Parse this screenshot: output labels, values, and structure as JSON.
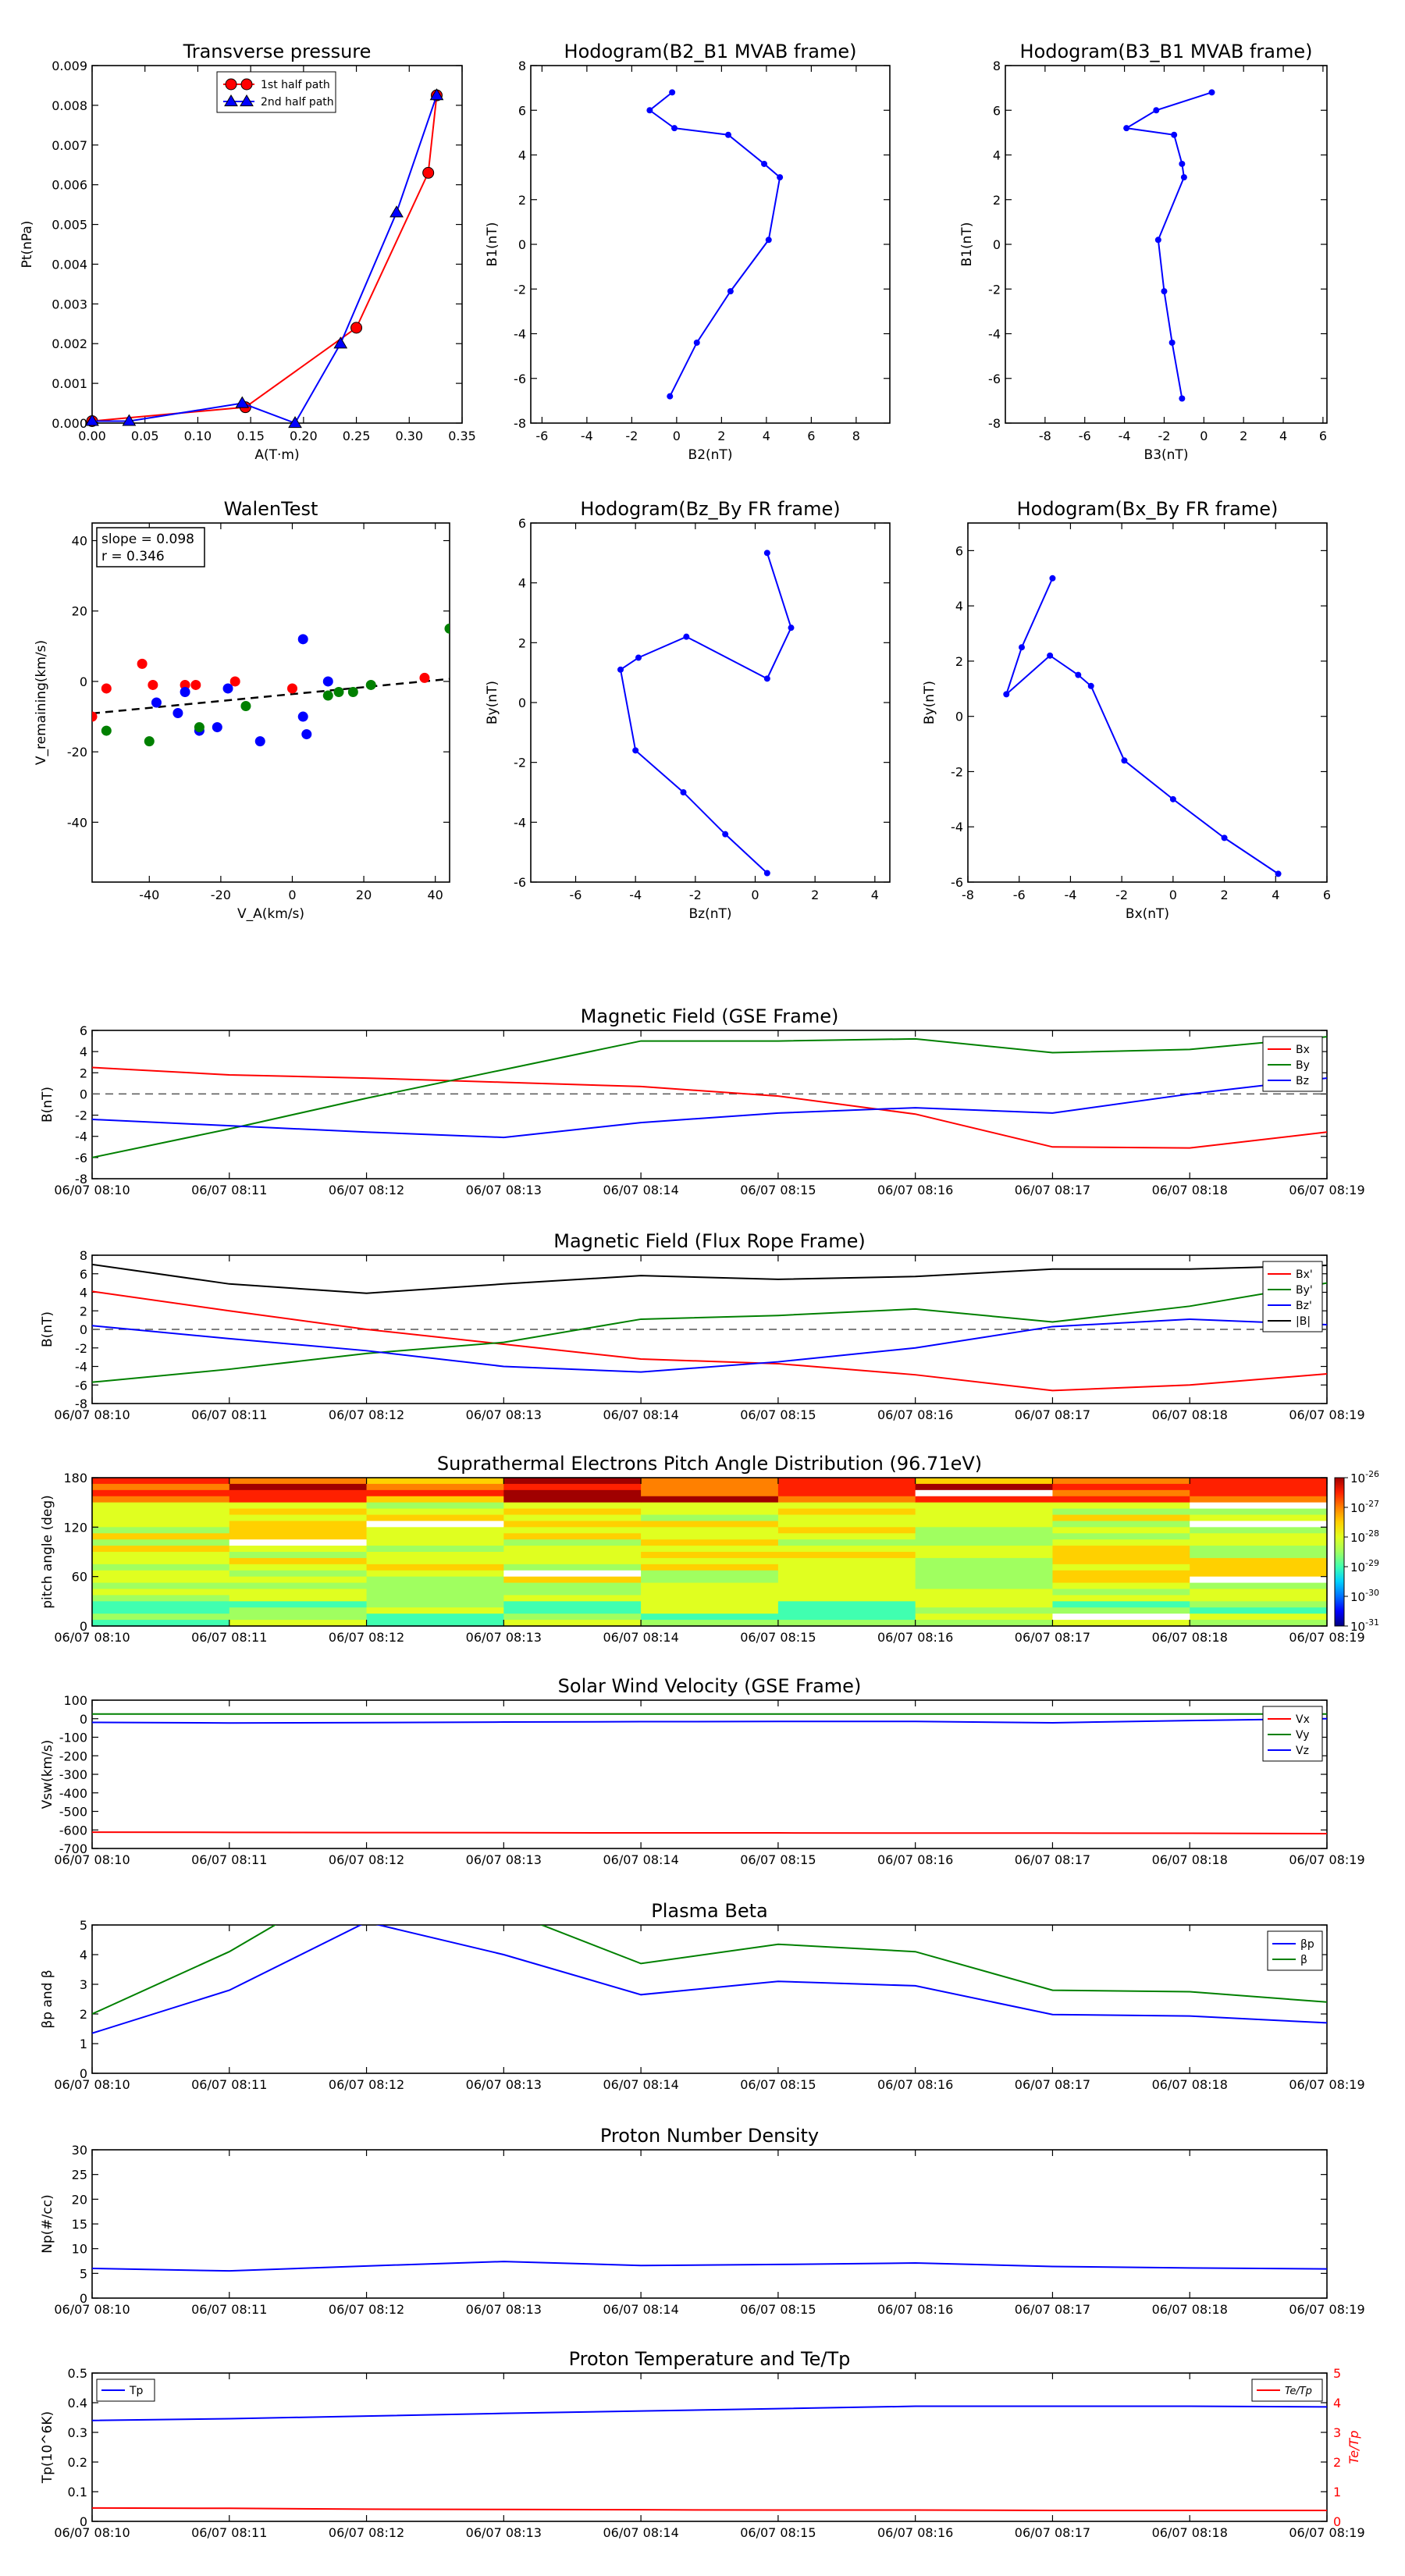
{
  "common_x": {
    "ticks": [
      "06/07 08:10",
      "06/07 08:11",
      "06/07 08:12",
      "06/07 08:13",
      "06/07 08:14",
      "06/07 08:15",
      "06/07 08:16",
      "06/07 08:17",
      "06/07 08:18",
      "06/07 08:19"
    ]
  },
  "colors": {
    "red": "#ff0000",
    "green": "#008000",
    "blue": "#0000ff",
    "black": "#000000"
  },
  "chart_data": [
    {
      "id": "tp",
      "type": "line",
      "title": "Transverse pressure",
      "xlabel": "A(T·m)",
      "ylabel": "Pt(nPa)",
      "xlim": [
        0,
        0.35
      ],
      "ylim": [
        0,
        0.009
      ],
      "xticks": [
        0,
        0.05,
        0.1,
        0.15,
        0.2,
        0.25,
        0.3,
        0.35
      ],
      "xticklabels": [
        "0.00",
        "0.05",
        "0.10",
        "0.15",
        "0.20",
        "0.25",
        "0.30",
        "0.35"
      ],
      "yticks": [
        0,
        0.001,
        0.002,
        0.003,
        0.004,
        0.005,
        0.006,
        0.007,
        0.008,
        0.009
      ],
      "yticklabels": [
        "0.000",
        "0.001",
        "0.002",
        "0.003",
        "0.004",
        "0.005",
        "0.006",
        "0.007",
        "0.008",
        "0.009"
      ],
      "legend": {
        "position": "top-center",
        "entries": [
          "1st half path",
          "2nd half path"
        ]
      },
      "series": [
        {
          "name": "1st half path",
          "color": "red",
          "marker": "circle",
          "x": [
            0.0,
            0.145,
            0.25,
            0.318,
            0.326
          ],
          "y": [
            5e-05,
            0.0004,
            0.0024,
            0.0063,
            0.00825
          ]
        },
        {
          "name": "2nd half path",
          "color": "blue",
          "marker": "triangle",
          "x": [
            0.326,
            0.288,
            0.235,
            0.192,
            0.142,
            0.035,
            0.0
          ],
          "y": [
            0.00825,
            0.0053,
            0.002,
            0.0,
            0.0005,
            5e-05,
            5e-05
          ]
        }
      ]
    },
    {
      "id": "h1",
      "type": "line",
      "title": "Hodogram(B2_B1 MVAB frame)",
      "xlabel": "B2(nT)",
      "ylabel": "B1(nT)",
      "xlim": [
        -6.5,
        9.5
      ],
      "ylim": [
        -8,
        8
      ],
      "xticks": [
        -6,
        -4,
        -2,
        0,
        2,
        4,
        6,
        8
      ],
      "yticks": [
        -8,
        -6,
        -4,
        -2,
        0,
        2,
        4,
        6,
        8
      ],
      "series": [
        {
          "color": "blue",
          "marker": "dot",
          "x": [
            -0.2,
            -1.2,
            -0.1,
            2.3,
            3.9,
            4.6,
            4.1,
            2.4,
            0.9,
            -0.3
          ],
          "y": [
            6.8,
            6.0,
            5.2,
            4.9,
            3.6,
            3.0,
            0.2,
            -2.1,
            -4.4,
            -6.8
          ]
        }
      ]
    },
    {
      "id": "h2",
      "type": "line",
      "title": "Hodogram(B3_B1 MVAB frame)",
      "xlabel": "B3(nT)",
      "ylabel": "B1(nT)",
      "xlim": [
        -10,
        6.2
      ],
      "ylim": [
        -8,
        8
      ],
      "xticks": [
        -8,
        -6,
        -4,
        -2,
        0,
        2,
        4,
        6
      ],
      "yticks": [
        -8,
        -6,
        -4,
        -2,
        0,
        2,
        4,
        6,
        8
      ],
      "series": [
        {
          "color": "blue",
          "marker": "dot",
          "x": [
            0.4,
            -2.4,
            -3.9,
            -1.5,
            -1.1,
            -1.0,
            -2.3,
            -2.0,
            -1.6,
            -1.1
          ],
          "y": [
            6.8,
            6.0,
            5.2,
            4.9,
            3.6,
            3.0,
            0.2,
            -2.1,
            -4.4,
            -6.9
          ]
        }
      ]
    },
    {
      "id": "walen",
      "type": "scatter",
      "title": "WalenTest",
      "xlabel": "V_A(km/s)",
      "ylabel": "V_remaining(km/s)",
      "xlim": [
        -56,
        44
      ],
      "ylim": [
        -57,
        45
      ],
      "xticks": [
        -40,
        -20,
        0,
        20,
        40
      ],
      "yticks": [
        -40,
        -20,
        0,
        20,
        40
      ],
      "annotation": [
        "slope = 0.098",
        "r = 0.346"
      ],
      "fit": {
        "slope": 0.098,
        "intercept": -3.6
      },
      "series": [
        {
          "color": "red",
          "x": [
            -56,
            -52,
            -42,
            -39,
            -30,
            -27,
            -16,
            0,
            37
          ],
          "y": [
            -10,
            -2,
            5,
            -1,
            -1,
            -1,
            0,
            -2,
            1
          ]
        },
        {
          "color": "blue",
          "x": [
            -38,
            -32,
            -30,
            -26,
            -21,
            -18,
            -9,
            3,
            3,
            4,
            10
          ],
          "y": [
            -6,
            -9,
            -3,
            -14,
            -13,
            -2,
            -17,
            12,
            -10,
            -15,
            0
          ]
        },
        {
          "color": "green",
          "x": [
            -52,
            -40,
            -26,
            -13,
            10,
            13,
            17,
            22,
            44
          ],
          "y": [
            -14,
            -17,
            -13,
            -7,
            -4,
            -3,
            -3,
            -1,
            15
          ]
        }
      ]
    },
    {
      "id": "h3",
      "type": "line",
      "title": "Hodogram(Bz_By FR frame)",
      "xlabel": "Bz(nT)",
      "ylabel": "By(nT)",
      "xlim": [
        -7.5,
        4.5
      ],
      "ylim": [
        -6,
        6
      ],
      "xticks": [
        -6,
        -4,
        -2,
        0,
        2,
        4
      ],
      "yticks": [
        -6,
        -4,
        -2,
        0,
        2,
        4,
        6
      ],
      "series": [
        {
          "color": "blue",
          "marker": "dot",
          "x": [
            0.4,
            1.2,
            0.4,
            -2.3,
            -3.9,
            -4.5,
            -4.0,
            -2.4,
            -1.0,
            0.4
          ],
          "y": [
            5.0,
            2.5,
            0.8,
            2.2,
            1.5,
            1.1,
            -1.6,
            -3.0,
            -4.4,
            -5.7
          ]
        }
      ]
    },
    {
      "id": "h4",
      "type": "line",
      "title": "Hodogram(Bx_By FR frame)",
      "xlabel": "Bx(nT)",
      "ylabel": "By(nT)",
      "xlim": [
        -8,
        6
      ],
      "ylim": [
        -6,
        7
      ],
      "xticks": [
        -8,
        -6,
        -4,
        -2,
        0,
        2,
        4,
        6
      ],
      "yticks": [
        -6,
        -4,
        -2,
        0,
        2,
        4,
        6
      ],
      "series": [
        {
          "color": "blue",
          "marker": "dot",
          "x": [
            -4.7,
            -5.9,
            -6.5,
            -4.8,
            -3.7,
            -3.2,
            -1.9,
            0.0,
            2.0,
            4.1
          ],
          "y": [
            5.0,
            2.5,
            0.8,
            2.2,
            1.5,
            1.1,
            -1.6,
            -3.0,
            -4.4,
            -5.7
          ]
        }
      ]
    },
    {
      "id": "mag_gse",
      "type": "line",
      "title": "Magnetic Field (GSE Frame)",
      "ylabel": "B(nT)",
      "xlim": [
        0,
        9
      ],
      "ylim": [
        -8,
        6
      ],
      "yticks": [
        -8,
        -6,
        -4,
        -2,
        0,
        2,
        4,
        6
      ],
      "zero_line": true,
      "legend": {
        "position": "top-right"
      },
      "series": [
        {
          "name": "Bx",
          "color": "red",
          "values": [
            2.5,
            1.8,
            1.5,
            1.1,
            0.7,
            -0.2,
            -1.9,
            -5.0,
            -5.1,
            -3.6
          ]
        },
        {
          "name": "By",
          "color": "green",
          "values": [
            -6.0,
            -3.3,
            -0.4,
            2.3,
            5.0,
            5.0,
            5.2,
            3.9,
            4.2,
            5.4
          ]
        },
        {
          "name": "Bz",
          "color": "blue",
          "values": [
            -2.4,
            -3.0,
            -3.6,
            -4.1,
            -2.7,
            -1.8,
            -1.3,
            -1.8,
            0.0,
            1.5
          ]
        }
      ]
    },
    {
      "id": "mag_fr",
      "type": "line",
      "title": "Magnetic Field (Flux Rope Frame)",
      "ylabel": "B(nT)",
      "xlim": [
        0,
        9
      ],
      "ylim": [
        -8,
        8
      ],
      "yticks": [
        -8,
        -6,
        -4,
        -2,
        0,
        2,
        4,
        6,
        8
      ],
      "zero_line": true,
      "legend": {
        "position": "top-right"
      },
      "series": [
        {
          "name": "Bx'",
          "color": "red",
          "values": [
            4.1,
            2.0,
            0.0,
            -1.6,
            -3.2,
            -3.7,
            -4.9,
            -6.6,
            -6.0,
            -4.8
          ]
        },
        {
          "name": "By'",
          "color": "green",
          "values": [
            -5.7,
            -4.3,
            -2.6,
            -1.4,
            1.1,
            1.5,
            2.2,
            0.8,
            2.5,
            5.0
          ]
        },
        {
          "name": "Bz'",
          "color": "blue",
          "values": [
            0.4,
            -1.0,
            -2.3,
            -4.0,
            -4.6,
            -3.5,
            -2.0,
            0.3,
            1.1,
            0.5
          ]
        },
        {
          "name": "|B|",
          "color": "black",
          "values": [
            7.0,
            4.9,
            3.9,
            4.9,
            5.8,
            5.4,
            5.7,
            6.5,
            6.5,
            6.9
          ]
        }
      ]
    },
    {
      "id": "pad",
      "type": "heatmap",
      "title": "Suprathermal Electrons Pitch Angle Distribution (96.71eV)",
      "ylabel": "pitch angle (deg)",
      "xlim": [
        0,
        9
      ],
      "ylim": [
        0,
        180
      ],
      "yticks": [
        0,
        60,
        120,
        180
      ],
      "colorbar": {
        "ticks": [
          "10",
          "10",
          "10",
          "10",
          "10",
          "10"
        ],
        "exponents": [
          "-26",
          "-27",
          "-28",
          "-29",
          "-30",
          "-31"
        ]
      }
    },
    {
      "id": "vsw",
      "type": "line",
      "title": "Solar Wind Velocity (GSE Frame)",
      "ylabel": "Vsw(km/s)",
      "xlim": [
        0,
        9
      ],
      "ylim": [
        -700,
        100
      ],
      "yticks": [
        -700,
        -600,
        -500,
        -400,
        -300,
        -200,
        -100,
        0,
        100
      ],
      "legend": {
        "position": "top-right"
      },
      "series": [
        {
          "name": "Vx",
          "color": "red",
          "values": [
            -612,
            -613,
            -614,
            -615,
            -616,
            -616,
            -617,
            -617,
            -618,
            -620
          ]
        },
        {
          "name": "Vy",
          "color": "green",
          "values": [
            25,
            25,
            25,
            25,
            25,
            25,
            25,
            25,
            25,
            25
          ]
        },
        {
          "name": "Vz",
          "color": "blue",
          "values": [
            -20,
            -23,
            -21,
            -18,
            -16,
            -15,
            -15,
            -22,
            -10,
            0
          ]
        }
      ]
    },
    {
      "id": "beta",
      "type": "line",
      "title": "Plasma Beta",
      "ylabel": "βp and β",
      "xlim": [
        0,
        9
      ],
      "ylim": [
        0,
        5
      ],
      "yticks": [
        0,
        1,
        2,
        3,
        4,
        5
      ],
      "legend": {
        "position": "top-right"
      },
      "series": [
        {
          "name": "βp",
          "color": "blue",
          "values": [
            1.35,
            2.8,
            5.1,
            4.0,
            2.65,
            3.1,
            2.95,
            1.98,
            1.93,
            1.7
          ]
        },
        {
          "name": "β",
          "color": "green",
          "values": [
            2.0,
            4.1,
            6.8,
            5.5,
            3.7,
            4.35,
            4.1,
            2.8,
            2.75,
            2.4
          ]
        }
      ]
    },
    {
      "id": "np",
      "type": "line",
      "title": "Proton Number Density",
      "ylabel": "Np(#/cc)",
      "xlim": [
        0,
        9
      ],
      "ylim": [
        0,
        30
      ],
      "yticks": [
        0,
        5,
        10,
        15,
        20,
        25,
        30
      ],
      "series": [
        {
          "color": "blue",
          "values": [
            6.0,
            5.5,
            6.5,
            7.4,
            6.6,
            6.8,
            7.1,
            6.4,
            6.1,
            5.9
          ]
        }
      ]
    },
    {
      "id": "temp",
      "type": "line",
      "title": "Proton Temperature and Te/Tp",
      "ylabel": "Tp(10^6K)",
      "ylabel_right": "Te/Tp",
      "xlim": [
        0,
        9
      ],
      "ylim": [
        0,
        0.5
      ],
      "yticks": [
        0,
        0.1,
        0.2,
        0.3,
        0.4,
        0.5
      ],
      "ylim_right": [
        0,
        5
      ],
      "yticks_right": [
        0,
        1,
        2,
        3,
        4,
        5
      ],
      "series": [
        {
          "name": "Tp",
          "color": "blue",
          "axis": "left",
          "values": [
            0.34,
            0.346,
            0.355,
            0.364,
            0.372,
            0.38,
            0.388,
            0.388,
            0.388,
            0.386
          ]
        },
        {
          "name": "Te/Tp",
          "color": "red",
          "axis": "right",
          "values": [
            0.45,
            0.44,
            0.41,
            0.4,
            0.39,
            0.38,
            0.38,
            0.37,
            0.37,
            0.37
          ]
        }
      ]
    }
  ]
}
